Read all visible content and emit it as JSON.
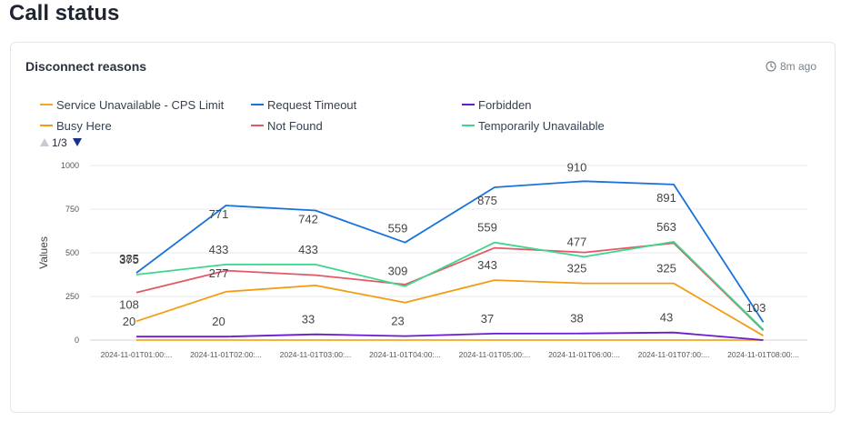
{
  "page": {
    "title": "Call status"
  },
  "card": {
    "title": "Disconnect reasons",
    "updated": "8m ago"
  },
  "legend": {
    "pager": "1/3"
  },
  "chart_data": {
    "type": "line",
    "title": "Disconnect reasons",
    "xlabel": "",
    "ylabel": "Values",
    "ylim": [
      0,
      1000
    ],
    "yticks": [
      0,
      250,
      500,
      750,
      1000
    ],
    "grid": true,
    "legend_position": "top",
    "categories": [
      "2024-11-01T01:00:...",
      "2024-11-01T02:00:...",
      "2024-11-01T03:00:...",
      "2024-11-01T04:00:...",
      "2024-11-01T05:00:...",
      "2024-11-01T06:00:...",
      "2024-11-01T07:00:...",
      "2024-11-01T08:00:..."
    ],
    "labeled_series": [
      "Request Timeout",
      "Temporarily Unavailable",
      "Busy Here",
      "Forbidden"
    ],
    "series": [
      {
        "name": "Service Unavailable - CPS Limit",
        "color": "#f5a623",
        "values": [
          0,
          0,
          0,
          0,
          0,
          0,
          0,
          0
        ]
      },
      {
        "name": "Request Timeout",
        "color": "#1a73d9",
        "values": [
          385,
          771,
          742,
          559,
          875,
          910,
          891,
          103
        ]
      },
      {
        "name": "Forbidden",
        "color": "#6a1bd0",
        "values": [
          20,
          20,
          33,
          23,
          37,
          38,
          43,
          0
        ]
      },
      {
        "name": "Busy Here",
        "color": "#f39c12",
        "values": [
          108,
          277,
          313,
          215,
          343,
          325,
          325,
          25
        ]
      },
      {
        "name": "Not Found",
        "color": "#e45765",
        "values": [
          272,
          398,
          372,
          318,
          528,
          502,
          555,
          55
        ]
      },
      {
        "name": "Temporarily Unavailable",
        "color": "#3dd68c",
        "values": [
          375,
          433,
          433,
          309,
          559,
          477,
          563,
          60
        ]
      }
    ]
  }
}
